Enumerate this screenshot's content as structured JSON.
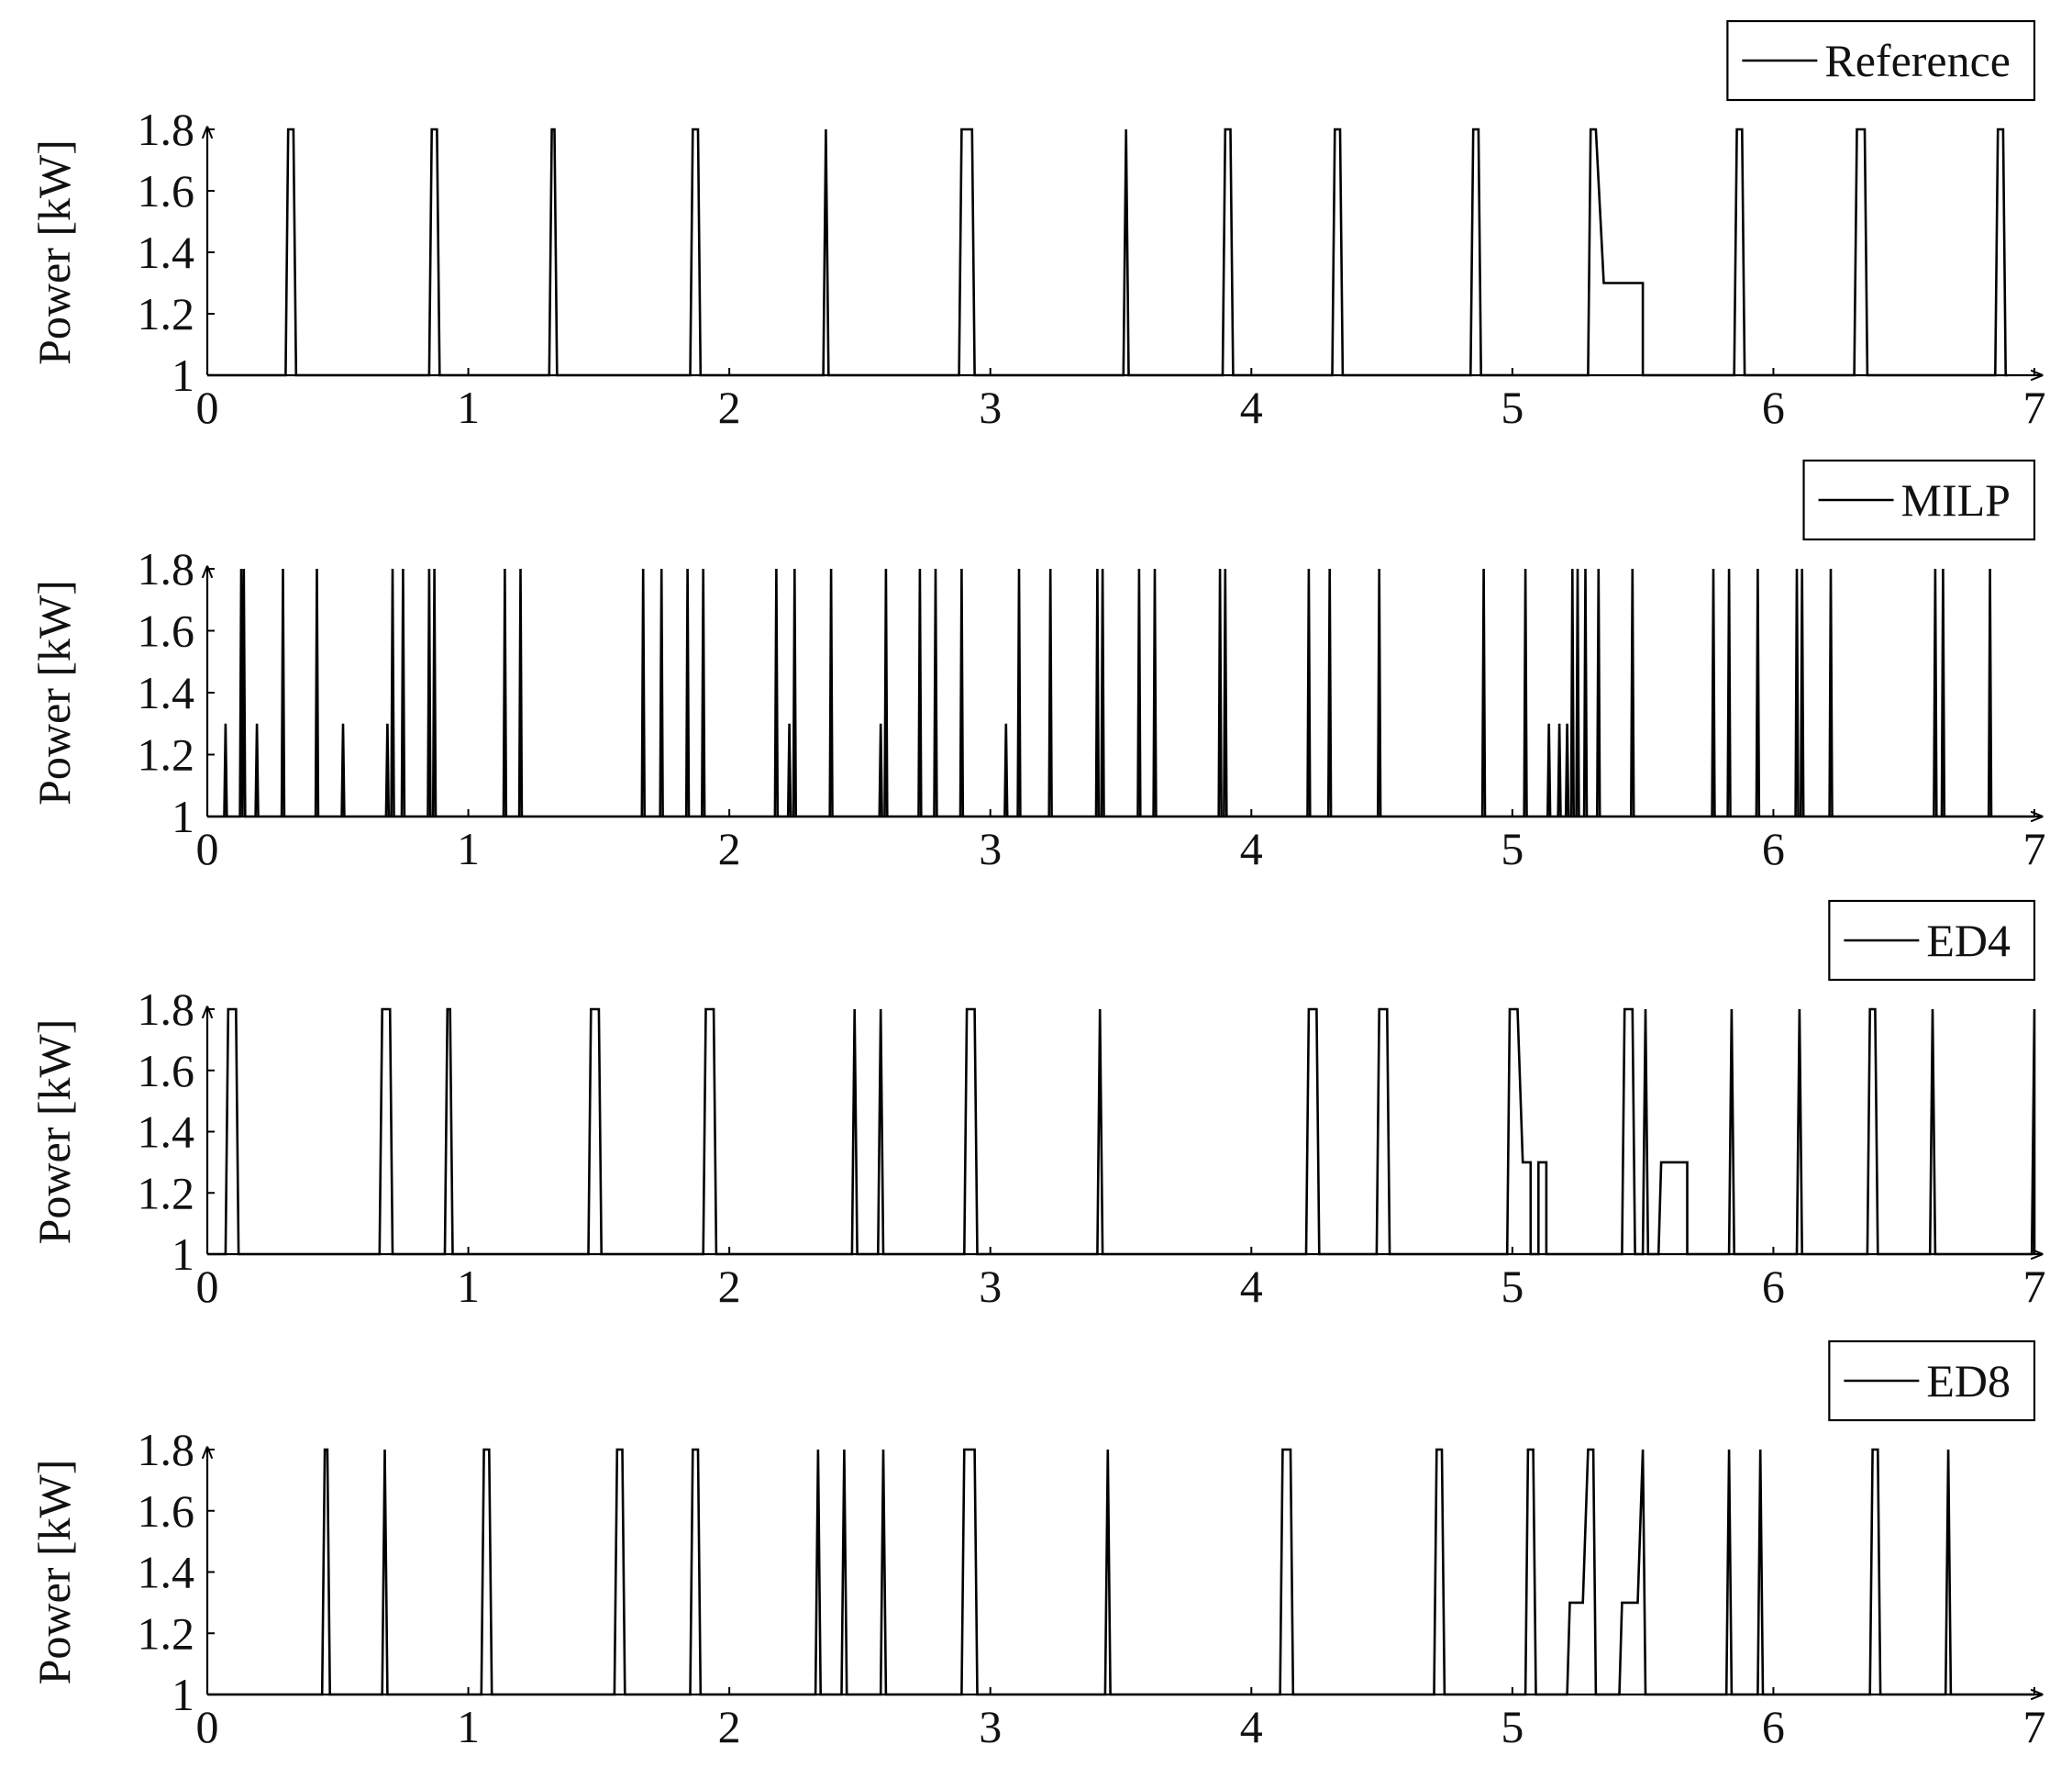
{
  "chart_data": [
    {
      "type": "line",
      "ylabel": "Power [kW]",
      "x": [
        0,
        0.3,
        0.31,
        0.33,
        0.34,
        0.85,
        0.86,
        0.88,
        0.89,
        1.31,
        1.32,
        1.33,
        1.34,
        1.85,
        1.86,
        1.88,
        1.89,
        2.36,
        2.37,
        2.38,
        2.88,
        2.89,
        2.93,
        2.94,
        3.51,
        3.52,
        3.53,
        3.89,
        3.9,
        3.92,
        3.93,
        4.31,
        4.32,
        4.34,
        4.35,
        4.84,
        4.85,
        4.87,
        4.88,
        5.29,
        5.3,
        5.32,
        5.35,
        5.5,
        5.5,
        5.85,
        5.86,
        5.88,
        5.89,
        6.31,
        6.32,
        6.35,
        6.36,
        6.85,
        6.86,
        6.88,
        6.89,
        6.9
      ],
      "series": [
        {
          "name": "Reference",
          "color": "#000000",
          "values": [
            1,
            1,
            1.8,
            1.8,
            1,
            1,
            1.8,
            1.8,
            1,
            1,
            1.8,
            1.8,
            1,
            1,
            1.8,
            1.8,
            1,
            1,
            1.8,
            1,
            1,
            1.8,
            1.8,
            1,
            1,
            1.8,
            1,
            1,
            1.8,
            1.8,
            1,
            1,
            1.8,
            1.8,
            1,
            1,
            1.8,
            1.8,
            1,
            1,
            1.8,
            1.8,
            1.3,
            1.3,
            1,
            1,
            1.8,
            1.8,
            1,
            1,
            1.8,
            1.8,
            1,
            1,
            1.8,
            1.8,
            1,
            1
          ]
        }
      ],
      "xlim": [
        0,
        7
      ],
      "ylim": [
        1,
        1.8
      ],
      "xticks": [
        0,
        1,
        2,
        3,
        4,
        5,
        6,
        7
      ],
      "yticks": [
        1,
        1.2,
        1.4,
        1.6,
        1.8
      ],
      "legend": "upper right"
    },
    {
      "type": "line",
      "ylabel": "Power [kW]",
      "x": [
        0,
        0.065,
        0.07,
        0.075,
        0.125,
        0.13,
        0.135,
        0.135,
        0.14,
        0.145,
        0.185,
        0.19,
        0.195,
        0.285,
        0.29,
        0.295,
        0.415,
        0.42,
        0.425,
        0.515,
        0.52,
        0.525,
        0.685,
        0.69,
        0.695,
        0.705,
        0.71,
        0.715,
        0.745,
        0.75,
        0.755,
        0.845,
        0.85,
        0.855,
        0.865,
        0.87,
        0.875,
        1.135,
        1.14,
        1.145,
        1.195,
        1.2,
        1.205,
        1.665,
        1.67,
        1.675,
        1.735,
        1.74,
        1.745,
        1.835,
        1.84,
        1.845,
        1.895,
        1.9,
        1.905,
        2.175,
        2.18,
        2.185,
        2.225,
        2.23,
        2.235,
        2.245,
        2.25,
        2.255,
        2.385,
        2.39,
        2.395,
        2.575,
        2.58,
        2.585,
        2.595,
        2.6,
        2.605,
        2.725,
        2.73,
        2.735,
        2.785,
        2.79,
        2.795,
        2.885,
        2.89,
        2.895,
        3.055,
        3.06,
        3.065,
        3.105,
        3.11,
        3.115,
        3.225,
        3.23,
        3.235,
        3.405,
        3.41,
        3.415,
        3.425,
        3.43,
        3.435,
        3.565,
        3.57,
        3.575,
        3.625,
        3.63,
        3.635,
        3.875,
        3.88,
        3.885,
        3.895,
        3.9,
        3.905,
        4.215,
        4.22,
        4.225,
        4.295,
        4.3,
        4.305,
        4.485,
        4.49,
        4.495,
        4.885,
        4.89,
        4.895,
        5.045,
        5.05,
        5.055,
        5.135,
        5.14,
        5.145,
        5.175,
        5.18,
        5.185,
        5.205,
        5.21,
        5.215,
        5.225,
        5.23,
        5.235,
        5.245,
        5.25,
        5.255,
        5.275,
        5.28,
        5.285,
        5.325,
        5.33,
        5.335,
        5.455,
        5.46,
        5.465,
        5.765,
        5.77,
        5.775,
        5.825,
        5.83,
        5.835,
        5.935,
        5.94,
        5.945,
        6.085,
        6.09,
        6.095,
        6.105,
        6.11,
        6.115,
        6.215,
        6.22,
        6.225,
        6.615,
        6.62,
        6.625,
        6.645,
        6.65,
        6.655,
        6.825,
        6.83,
        6.835,
        7
      ],
      "series": [
        {
          "name": "MILP",
          "color": "#000000",
          "values": [
            1,
            1,
            1.3,
            1,
            1,
            1.8,
            1,
            1,
            1.8,
            1,
            1,
            1.3,
            1,
            1,
            1.8,
            1,
            1,
            1.8,
            1,
            1,
            1.3,
            1,
            1,
            1.3,
            1,
            1,
            1.8,
            1,
            1,
            1.8,
            1,
            1,
            1.8,
            1,
            1,
            1.8,
            1,
            1,
            1.8,
            1,
            1,
            1.8,
            1,
            1,
            1.8,
            1,
            1,
            1.8,
            1,
            1,
            1.8,
            1,
            1,
            1.8,
            1,
            1,
            1.8,
            1,
            1,
            1.3,
            1,
            1,
            1.8,
            1,
            1,
            1.8,
            1,
            1,
            1.3,
            1,
            1,
            1.8,
            1,
            1,
            1.8,
            1,
            1,
            1.8,
            1,
            1,
            1.8,
            1,
            1,
            1.3,
            1,
            1,
            1.8,
            1,
            1,
            1.8,
            1,
            1,
            1.8,
            1,
            1,
            1.8,
            1,
            1,
            1.8,
            1,
            1,
            1.8,
            1,
            1,
            1.8,
            1,
            1,
            1.8,
            1,
            1,
            1.8,
            1,
            1,
            1.8,
            1,
            1,
            1.8,
            1,
            1,
            1.8,
            1,
            1,
            1.8,
            1,
            1,
            1.3,
            1,
            1,
            1.3,
            1,
            1,
            1.3,
            1,
            1,
            1.8,
            1,
            1,
            1.8,
            1,
            1,
            1.8,
            1,
            1,
            1.8,
            1,
            1,
            1.8,
            1,
            1,
            1.8,
            1,
            1,
            1.8,
            1,
            1,
            1.8,
            1,
            1,
            1.8,
            1,
            1,
            1.8,
            1,
            1,
            1.8,
            1,
            1,
            1.8,
            1,
            1,
            1.8,
            1,
            1,
            1.8,
            1,
            1
          ]
        }
      ],
      "xlim": [
        0,
        7
      ],
      "ylim": [
        1,
        1.8
      ],
      "xticks": [
        0,
        1,
        2,
        3,
        4,
        5,
        6,
        7
      ],
      "yticks": [
        1,
        1.2,
        1.4,
        1.6,
        1.8
      ],
      "legend": "upper right"
    },
    {
      "type": "line",
      "ylabel": "Power [kW]",
      "x": [
        0,
        0.07,
        0.08,
        0.11,
        0.12,
        0.66,
        0.67,
        0.7,
        0.71,
        0.91,
        0.92,
        0.93,
        0.94,
        1.46,
        1.47,
        1.5,
        1.51,
        1.9,
        1.91,
        1.94,
        1.95,
        2.47,
        2.48,
        2.49,
        2.57,
        2.58,
        2.59,
        2.9,
        2.91,
        2.94,
        2.95,
        3.41,
        3.42,
        3.43,
        4.21,
        4.22,
        4.25,
        4.26,
        4.48,
        4.49,
        4.52,
        4.53,
        4.98,
        4.99,
        5.02,
        5.04,
        5.07,
        5.07,
        5.1,
        5.1,
        5.13,
        5.13,
        5.42,
        5.43,
        5.46,
        5.47,
        5.5,
        5.51,
        5.52,
        5.56,
        5.57,
        5.67,
        5.67,
        5.83,
        5.84,
        5.85,
        6.09,
        6.1,
        6.11,
        6.36,
        6.37,
        6.39,
        6.4,
        6.6,
        6.61,
        6.62,
        6.99,
        7,
        7
      ],
      "series": [
        {
          "name": "ED4",
          "color": "#000000",
          "values": [
            1,
            1,
            1.8,
            1.8,
            1,
            1,
            1.8,
            1.8,
            1,
            1,
            1.8,
            1.8,
            1,
            1,
            1.8,
            1.8,
            1,
            1,
            1.8,
            1.8,
            1,
            1,
            1.8,
            1,
            1,
            1.8,
            1,
            1,
            1.8,
            1.8,
            1,
            1,
            1.8,
            1,
            1,
            1.8,
            1.8,
            1,
            1,
            1.8,
            1.8,
            1,
            1,
            1.8,
            1.8,
            1.3,
            1.3,
            1,
            1,
            1.3,
            1.3,
            1,
            1,
            1.8,
            1.8,
            1,
            1,
            1.8,
            1,
            1,
            1.3,
            1.3,
            1,
            1,
            1.8,
            1,
            1,
            1.8,
            1,
            1,
            1.8,
            1.8,
            1,
            1,
            1.8,
            1,
            1,
            1.8,
            1
          ]
        }
      ],
      "xlim": [
        0,
        7
      ],
      "ylim": [
        1,
        1.8
      ],
      "xticks": [
        0,
        1,
        2,
        3,
        4,
        5,
        6,
        7
      ],
      "yticks": [
        1,
        1.2,
        1.4,
        1.6,
        1.8
      ],
      "legend": "upper right"
    },
    {
      "type": "line",
      "ylabel": "Power [kW]",
      "x": [
        0,
        0.44,
        0.45,
        0.46,
        0.47,
        0.67,
        0.68,
        0.69,
        1.05,
        1.06,
        1.08,
        1.09,
        1.56,
        1.57,
        1.59,
        1.6,
        1.85,
        1.86,
        1.88,
        1.89,
        2.33,
        2.34,
        2.35,
        2.43,
        2.44,
        2.45,
        2.58,
        2.59,
        2.6,
        2.89,
        2.9,
        2.94,
        2.95,
        3.44,
        3.45,
        3.46,
        4.11,
        4.12,
        4.15,
        4.16,
        4.7,
        4.71,
        4.73,
        4.74,
        5.05,
        5.06,
        5.08,
        5.09,
        5.21,
        5.22,
        5.27,
        5.29,
        5.31,
        5.32,
        5.41,
        5.42,
        5.48,
        5.5,
        5.51,
        5.82,
        5.83,
        5.84,
        5.94,
        5.95,
        5.96,
        6.37,
        6.38,
        6.4,
        6.41,
        6.66,
        6.67,
        6.68,
        7
      ],
      "series": [
        {
          "name": "ED8",
          "color": "#000000",
          "values": [
            1,
            1,
            1.8,
            1.8,
            1,
            1,
            1.8,
            1,
            1,
            1.8,
            1.8,
            1,
            1,
            1.8,
            1.8,
            1,
            1,
            1.8,
            1.8,
            1,
            1,
            1.8,
            1,
            1,
            1.8,
            1,
            1,
            1.8,
            1,
            1,
            1.8,
            1.8,
            1,
            1,
            1.8,
            1,
            1,
            1.8,
            1.8,
            1,
            1,
            1.8,
            1.8,
            1,
            1,
            1.8,
            1.8,
            1,
            1,
            1.3,
            1.3,
            1.8,
            1.8,
            1,
            1,
            1.3,
            1.3,
            1.8,
            1,
            1,
            1.8,
            1,
            1,
            1.8,
            1,
            1,
            1.8,
            1.8,
            1,
            1,
            1.8,
            1,
            1
          ]
        }
      ],
      "xlim": [
        0,
        7
      ],
      "ylim": [
        1,
        1.8
      ],
      "xticks": [
        0,
        1,
        2,
        3,
        4,
        5,
        6,
        7
      ],
      "yticks": [
        1,
        1.2,
        1.4,
        1.6,
        1.8
      ],
      "legend": "upper right"
    }
  ]
}
